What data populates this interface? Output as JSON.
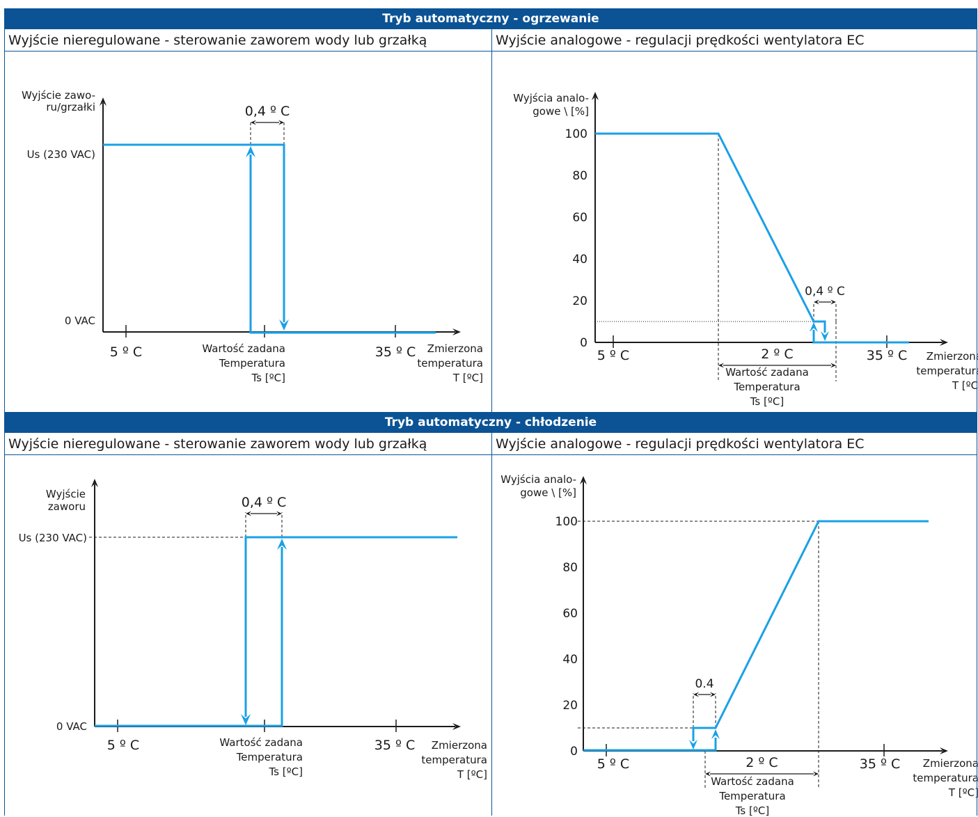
{
  "colors": {
    "header_bg": "#0b5394",
    "curve": "#1aa0e6",
    "axis": "#1a1a1a"
  },
  "sections": [
    {
      "title": "Tryb automatyczny - ogrzewanie",
      "left_title": "Wyjście nieregulowane - sterowanie zaworem wody lub grzałką",
      "right_title": "Wyjście analogowe - regulacji prędkości wentylatora EC"
    },
    {
      "title": "Tryb automatyczny - chłodzenie",
      "left_title": "Wyjście nieregulowane - sterowanie zaworem wody lub grzałką",
      "right_title": "Wyjście analogowe - regulacji prędkości wentylatora EC"
    }
  ],
  "heat_valve": {
    "ylabel": [
      "Wyjście zawo-",
      "ru/grzałki"
    ],
    "y_high": "Us (230 VAC)",
    "y_low": "0 VAC",
    "x_tick_low": "5 º C",
    "x_tick_high": "35 º C",
    "setpoint_label": [
      "Wartość zadana",
      "Temperatura",
      "Ts [ºC]"
    ],
    "xlabel": [
      "Zmierzona",
      "temperatura",
      "T [ºC]"
    ],
    "hysteresis": "0,4 º C"
  },
  "heat_fan": {
    "ylabel": [
      "Wyjścia analo-",
      "gowe \\ [%]"
    ],
    "y_ticks": [
      "0",
      "20",
      "40",
      "60",
      "80",
      "100"
    ],
    "x_tick_low": "5 º C",
    "x_tick_high": "35 º C",
    "band": "2 º C",
    "setpoint_label": [
      "Wartość zadana",
      "Temperatura",
      "Ts [ºC]"
    ],
    "xlabel": [
      "Zmierzona",
      "temperatura",
      "T [ºC]"
    ],
    "hysteresis": "0,4 º C"
  },
  "cool_valve": {
    "ylabel": [
      "Wyjście",
      "zaworu"
    ],
    "y_high": "Us (230 VAC)",
    "y_low": "0 VAC",
    "x_tick_low": "5 º C",
    "x_tick_high": "35 º C",
    "setpoint_label": [
      "Wartość zadana",
      "Temperatura",
      "Ts [ºC]"
    ],
    "xlabel": [
      "Zmierzona",
      "temperatura",
      "T [ºC]"
    ],
    "hysteresis": "0,4 º C"
  },
  "cool_fan": {
    "ylabel": [
      "Wyjścia analo-",
      "gowe \\ [%]"
    ],
    "y_ticks": [
      "0",
      "20",
      "40",
      "60",
      "80",
      "100"
    ],
    "x_tick_low": "5 º C",
    "x_tick_high": "35 º C",
    "band": "2 º C",
    "setpoint_label": [
      "Wartość zadana",
      "Temperatura",
      "Ts [ºC]"
    ],
    "xlabel": [
      "Zmierzona",
      "temperatura",
      "T [ºC]"
    ],
    "hysteresis": "0.4"
  }
}
